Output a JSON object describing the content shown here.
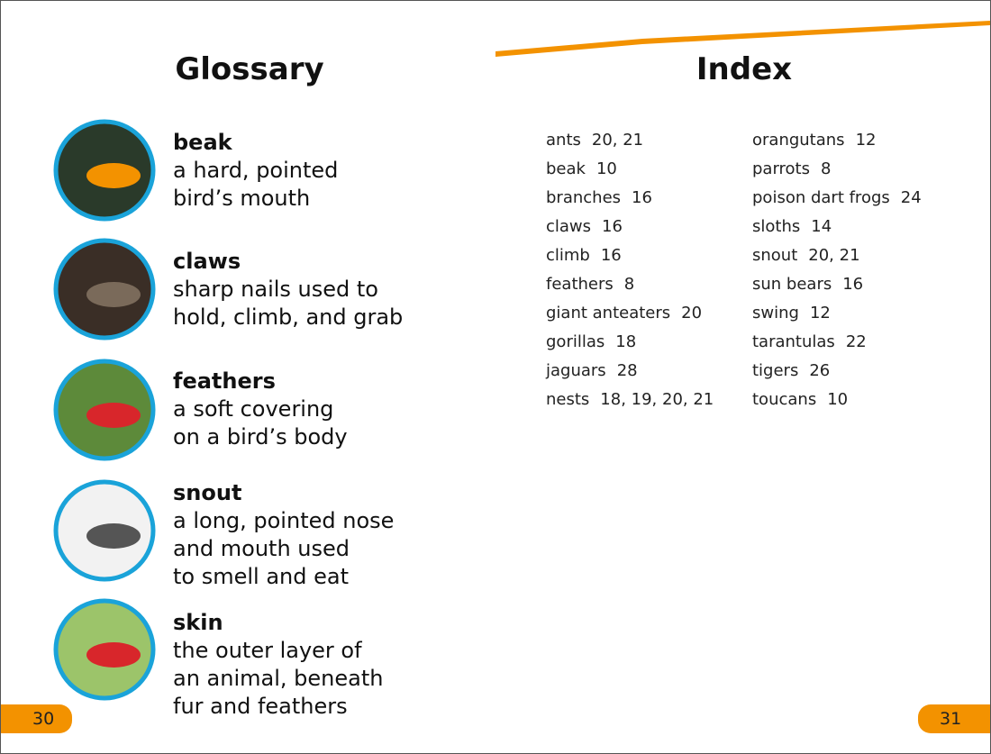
{
  "glossary": {
    "title": "Glossary",
    "entries": [
      {
        "term": "beak",
        "definition": [
          "a hard, pointed",
          "bird’s mouth"
        ]
      },
      {
        "term": "claws",
        "definition": [
          "sharp nails used to",
          "hold, climb, and grab"
        ]
      },
      {
        "term": "feathers",
        "definition": [
          "a soft covering",
          "on a bird’s body"
        ]
      },
      {
        "term": "snout",
        "definition": [
          "a long, pointed nose",
          "and mouth used",
          "to smell and eat"
        ]
      },
      {
        "term": "skin",
        "definition": [
          "the outer layer of",
          "an animal, beneath",
          "fur and feathers"
        ]
      }
    ]
  },
  "index": {
    "title": "Index",
    "columns": [
      [
        {
          "term": "ants",
          "pages": "20, 21"
        },
        {
          "term": "beak",
          "pages": "10"
        },
        {
          "term": "branches",
          "pages": "16"
        },
        {
          "term": "claws",
          "pages": "16"
        },
        {
          "term": "climb",
          "pages": "16"
        },
        {
          "term": "feathers",
          "pages": "8"
        },
        {
          "term": "giant anteaters",
          "pages": "20"
        },
        {
          "term": "gorillas",
          "pages": "18"
        },
        {
          "term": "jaguars",
          "pages": "28"
        },
        {
          "term": "nests",
          "pages": "18, 19, 20, 21"
        }
      ],
      [
        {
          "term": "orangutans",
          "pages": "12"
        },
        {
          "term": "parrots",
          "pages": "8"
        },
        {
          "term": "poison dart frogs",
          "pages": "24"
        },
        {
          "term": "sloths",
          "pages": "14"
        },
        {
          "term": "snout",
          "pages": "20, 21"
        },
        {
          "term": "sun bears",
          "pages": "16"
        },
        {
          "term": "swing",
          "pages": "12"
        },
        {
          "term": "tarantulas",
          "pages": "22"
        },
        {
          "term": "tigers",
          "pages": "26"
        },
        {
          "term": "toucans",
          "pages": "10"
        }
      ]
    ]
  },
  "page_numbers": {
    "left": "30",
    "right": "31"
  }
}
